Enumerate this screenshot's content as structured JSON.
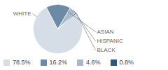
{
  "chart_data": {
    "type": "pie",
    "categories": [
      "WHITE",
      "ASIAN",
      "HISPANIC",
      "BLACK"
    ],
    "values": [
      78.5,
      16.2,
      4.6,
      0.8
    ],
    "value_labels": [
      "78.5%",
      "16.2%",
      "4.6%",
      "0.8%"
    ],
    "colors": [
      "#d5dde6",
      "#6b8aa6",
      "#a7b8ca",
      "#2c5879"
    ],
    "legend": "bottom"
  }
}
